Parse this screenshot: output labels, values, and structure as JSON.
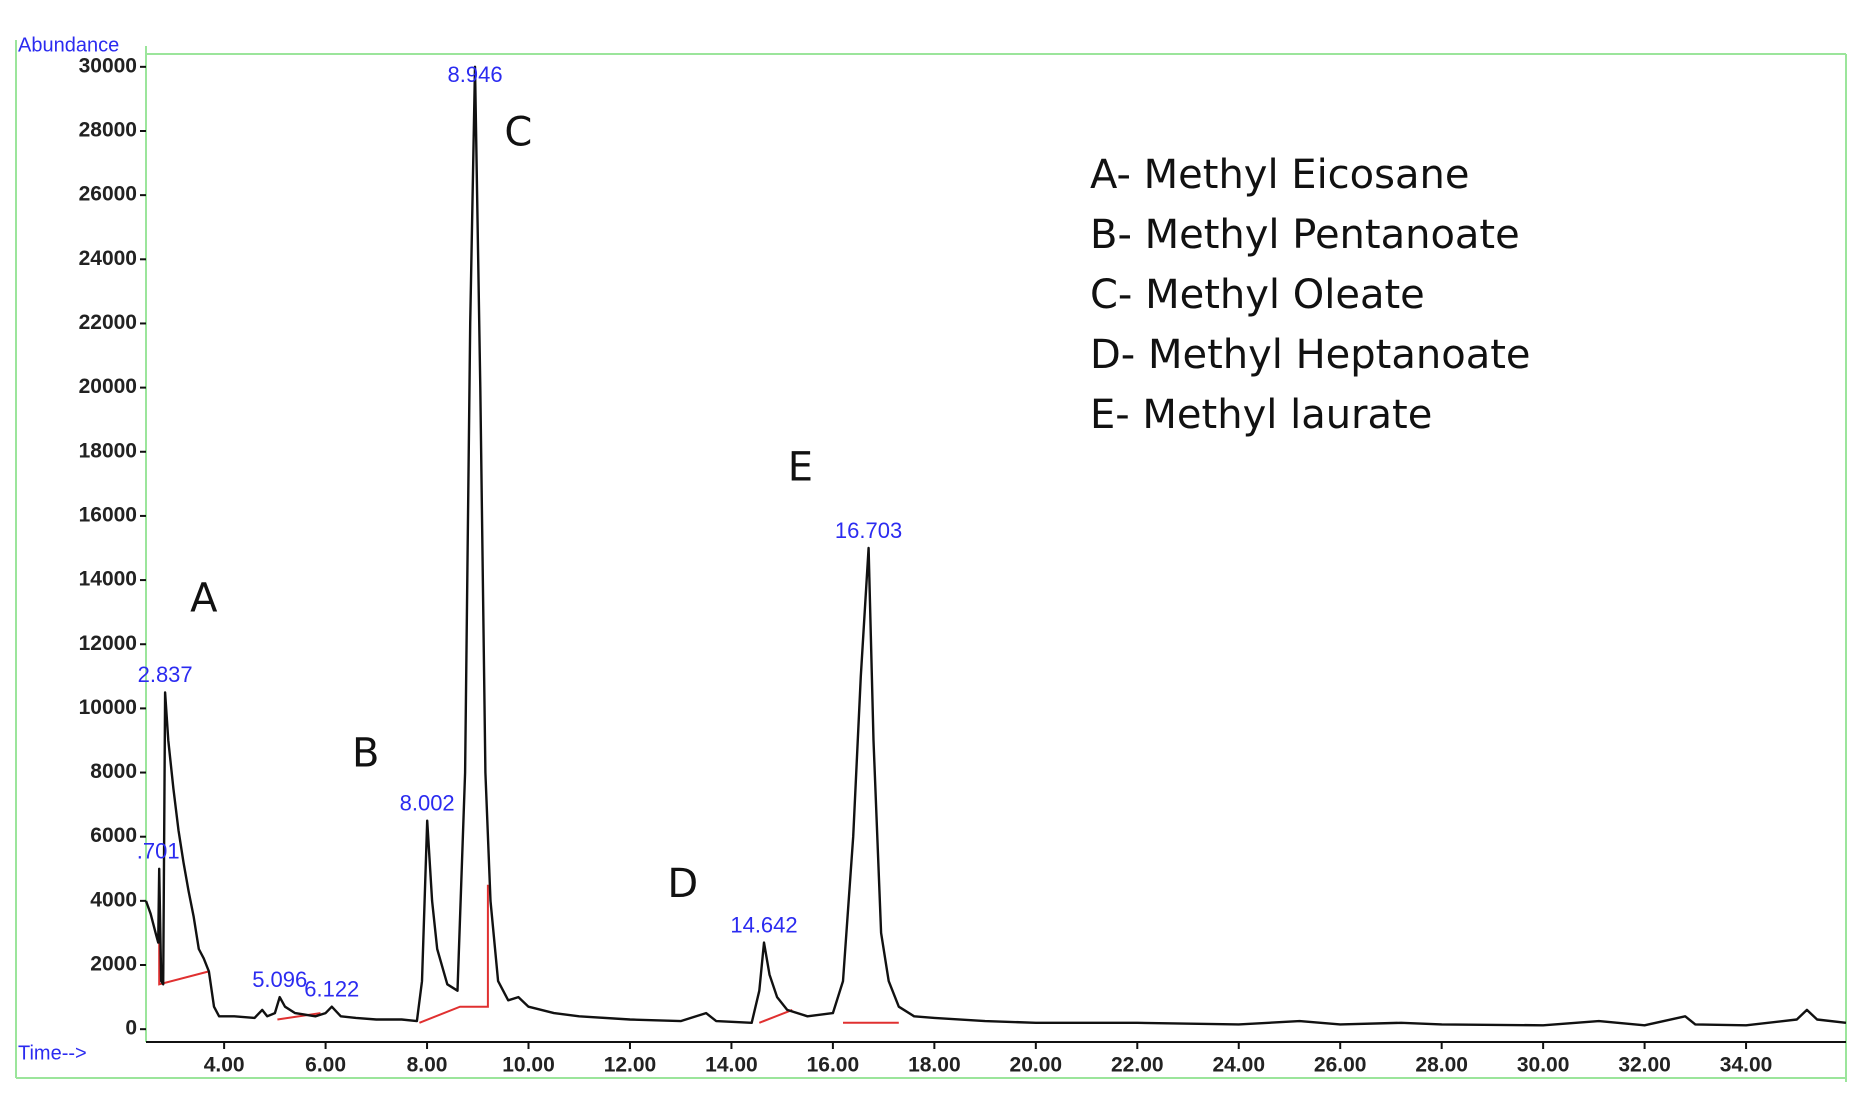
{
  "chart_data": {
    "type": "line",
    "y_label": "Abundance",
    "x_label": "Time-->",
    "color": "#111111",
    "xlim": [
      2.46,
      35.97
    ],
    "ylim": [
      -400,
      30400
    ],
    "yticks": [
      0,
      2000,
      4000,
      6000,
      8000,
      10000,
      12000,
      14000,
      16000,
      18000,
      20000,
      22000,
      24000,
      26000,
      28000,
      30000
    ],
    "xticks": [
      {
        "value": 4,
        "label": "4.00"
      },
      {
        "value": 6,
        "label": "6.00"
      },
      {
        "value": 8,
        "label": "8.00"
      },
      {
        "value": 10,
        "label": "10.00"
      },
      {
        "value": 12,
        "label": "12.00"
      },
      {
        "value": 14,
        "label": "14.00"
      },
      {
        "value": 16,
        "label": "16.00"
      },
      {
        "value": 18,
        "label": "18.00"
      },
      {
        "value": 20,
        "label": "20.00"
      },
      {
        "value": 22,
        "label": "22.00"
      },
      {
        "value": 24,
        "label": "24.00"
      },
      {
        "value": 26,
        "label": "26.00"
      },
      {
        "value": 28,
        "label": "28.00"
      },
      {
        "value": 30,
        "label": "30.00"
      },
      {
        "value": 32,
        "label": "32.00"
      },
      {
        "value": 34,
        "label": "34.00"
      }
    ],
    "x": [
      2.46,
      2.55,
      2.65,
      2.7,
      2.72,
      2.76,
      2.8,
      2.837,
      2.9,
      3.0,
      3.1,
      3.2,
      3.3,
      3.4,
      3.5,
      3.6,
      3.7,
      3.8,
      3.9,
      4.2,
      4.6,
      4.75,
      4.85,
      5.0,
      5.096,
      5.2,
      5.4,
      5.6,
      5.8,
      6.0,
      6.122,
      6.3,
      6.6,
      7.0,
      7.5,
      7.8,
      7.9,
      8.002,
      8.1,
      8.2,
      8.4,
      8.6,
      8.75,
      8.85,
      8.946,
      9.05,
      9.15,
      9.25,
      9.4,
      9.6,
      9.8,
      10.0,
      10.5,
      11.0,
      12.0,
      13.0,
      13.5,
      13.7,
      14.4,
      14.55,
      14.642,
      14.75,
      14.9,
      15.1,
      15.5,
      16.0,
      16.2,
      16.4,
      16.55,
      16.703,
      16.8,
      16.95,
      17.1,
      17.3,
      17.6,
      18.0,
      19.0,
      20.0,
      22.0,
      24.0,
      25.2,
      26.0,
      27.2,
      28.0,
      30.0,
      31.1,
      32.0,
      32.8,
      33.0,
      34.0,
      35.0,
      35.2,
      35.4,
      35.97
    ],
    "values": [
      4000,
      3600,
      3000,
      2700,
      5000,
      1500,
      1400,
      10500,
      9000,
      7500,
      6200,
      5200,
      4300,
      3500,
      2500,
      2200,
      1800,
      700,
      400,
      400,
      350,
      600,
      400,
      500,
      1000,
      700,
      500,
      450,
      400,
      500,
      700,
      400,
      350,
      300,
      300,
      250,
      1500,
      6500,
      4000,
      2500,
      1400,
      1200,
      8000,
      22000,
      30000,
      20000,
      8000,
      4000,
      1500,
      900,
      1000,
      700,
      500,
      400,
      300,
      250,
      500,
      250,
      200,
      1200,
      2700,
      1700,
      1000,
      600,
      400,
      500,
      1500,
      6000,
      11000,
      15000,
      9000,
      3000,
      1500,
      700,
      400,
      350,
      250,
      200,
      200,
      150,
      250,
      150,
      200,
      150,
      120,
      250,
      120,
      400,
      150,
      120,
      300,
      600,
      300,
      200
    ],
    "baseline_color": "#e03030",
    "baselines": [
      {
        "x": [
          2.72,
          2.72,
          3.7
        ],
        "y": [
          4000,
          1400,
          1800
        ]
      },
      {
        "x": [
          5.05,
          5.9
        ],
        "y": [
          300,
          500
        ]
      },
      {
        "x": [
          7.85,
          8.65,
          9.2,
          9.2
        ],
        "y": [
          200,
          700,
          700,
          4500
        ]
      },
      {
        "x": [
          14.55,
          15.2
        ],
        "y": [
          200,
          600
        ]
      },
      {
        "x": [
          16.2,
          17.3
        ],
        "y": [
          200,
          200
        ]
      }
    ],
    "peaks": [
      {
        "label": ".701",
        "time": 2.701,
        "abundance": 5000
      },
      {
        "label": "2.837",
        "time": 2.837,
        "abundance": 10500
      },
      {
        "label": "5.096",
        "time": 5.096,
        "abundance": 1000
      },
      {
        "label": "6.122",
        "time": 6.122,
        "abundance": 700
      },
      {
        "label": "8.002",
        "time": 8.002,
        "abundance": 6500
      },
      {
        "label": "8.946",
        "time": 8.946,
        "abundance": 30000
      },
      {
        "label": "14.642",
        "time": 14.642,
        "abundance": 2700
      },
      {
        "label": "16.703",
        "time": 16.703,
        "abundance": 15000
      }
    ],
    "annotations": [
      {
        "text": "A",
        "x": 3.6,
        "y": 13370
      },
      {
        "text": "B",
        "x": 6.79,
        "y": 8530
      },
      {
        "text": "C",
        "x": 9.8,
        "y": 27890
      },
      {
        "text": "D",
        "x": 13.04,
        "y": 4470
      },
      {
        "text": "E",
        "x": 15.36,
        "y": 17440
      }
    ],
    "legend_text": [
      "A- Methyl Eicosane",
      "B- Methyl Pentanoate",
      "C- Methyl Oleate",
      "D- Methyl Heptanoate",
      "E- Methyl laurate"
    ]
  }
}
